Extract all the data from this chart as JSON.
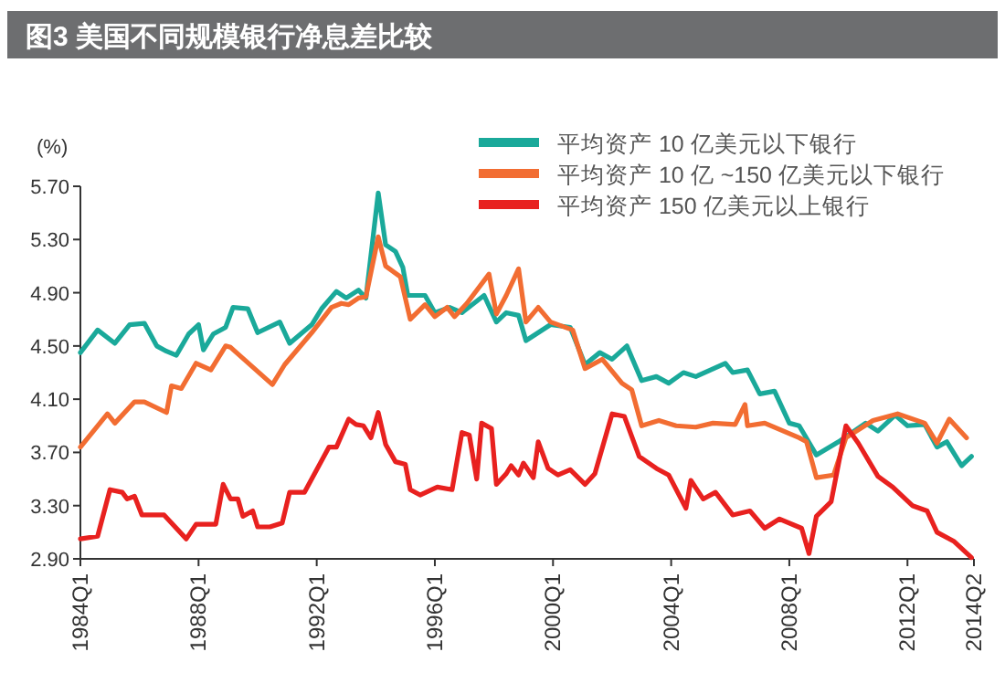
{
  "chart_data": {
    "type": "line",
    "title": "图3 美国不同规模银行净息差比较",
    "ylabel": "(%)",
    "xlim": [
      "1984-01",
      "2014-04"
    ],
    "xticks": [
      {
        "value": "1984-01",
        "label": "1984Q1"
      },
      {
        "value": "1988-01",
        "label": "1988Q1"
      },
      {
        "value": "1992-01",
        "label": "1992Q1"
      },
      {
        "value": "1996-01",
        "label": "1996Q1"
      },
      {
        "value": "2000-01",
        "label": "2000Q1"
      },
      {
        "value": "2004-01",
        "label": "2004Q1"
      },
      {
        "value": "2008-01",
        "label": "2008Q1"
      },
      {
        "value": "2012-01",
        "label": "2012Q1"
      },
      {
        "value": "2014-04",
        "label": "2014Q2"
      }
    ],
    "ylim": [
      2.9,
      5.7
    ],
    "yticks": [
      {
        "value": 2.9,
        "label": "2.90"
      },
      {
        "value": 3.3,
        "label": "3.30"
      },
      {
        "value": 3.7,
        "label": "3.70"
      },
      {
        "value": 4.1,
        "label": "4.10"
      },
      {
        "value": 4.5,
        "label": "4.50"
      },
      {
        "value": 4.9,
        "label": "4.90"
      },
      {
        "value": 5.3,
        "label": "5.30"
      },
      {
        "value": 5.7,
        "label": "5.70"
      }
    ],
    "grid": false,
    "legend": "top right",
    "marker": "none",
    "line_style": "solid",
    "series": [
      {
        "name": "平均资产 10 亿美元以下银行",
        "color": "#1aa99a",
        "x": [
          "1984-01",
          "1984-08",
          "1985-03",
          "1985-09",
          "1986-03",
          "1986-08",
          "1986-12",
          "1987-04",
          "1987-09",
          "1988-01",
          "1988-03",
          "1988-07",
          "1988-12",
          "1989-03",
          "1989-09",
          "1990-01",
          "1990-10",
          "1991-02",
          "1991-11",
          "1992-03",
          "1992-09",
          "1993-01",
          "1993-06",
          "1993-09",
          "1994-02",
          "1994-05",
          "1994-09",
          "1994-12",
          "1995-02",
          "1995-09",
          "1996-01",
          "1996-07",
          "1996-12",
          "1997-09",
          "1998-02",
          "1998-06",
          "1998-11",
          "1999-02",
          "1999-12",
          "2000-08",
          "2001-02",
          "2001-08",
          "2002-01",
          "2002-07",
          "2003-01",
          "2003-07",
          "2003-12",
          "2004-06",
          "2004-11",
          "2005-05",
          "2005-11",
          "2006-02",
          "2006-08",
          "2007-01",
          "2007-07",
          "2008-01",
          "2008-05",
          "2008-12",
          "2009-09",
          "2010-08",
          "2011-01",
          "2011-08",
          "2012-01",
          "2012-08",
          "2013-01",
          "2013-05",
          "2013-11",
          "2014-03"
        ],
        "values": [
          4.45,
          4.62,
          4.52,
          4.66,
          4.67,
          4.5,
          4.46,
          4.43,
          4.59,
          4.66,
          4.47,
          4.59,
          4.64,
          4.79,
          4.78,
          4.6,
          4.68,
          4.52,
          4.66,
          4.78,
          4.91,
          4.86,
          4.92,
          4.86,
          5.65,
          5.26,
          5.21,
          5.09,
          4.88,
          4.88,
          4.75,
          4.79,
          4.75,
          4.88,
          4.68,
          4.75,
          4.73,
          4.54,
          4.66,
          4.64,
          4.36,
          4.45,
          4.4,
          4.5,
          4.24,
          4.27,
          4.22,
          4.3,
          4.27,
          4.32,
          4.37,
          4.3,
          4.32,
          4.14,
          4.16,
          3.92,
          3.9,
          3.68,
          3.78,
          3.92,
          3.86,
          3.98,
          3.9,
          3.91,
          3.74,
          3.78,
          3.6,
          3.67
        ]
      },
      {
        "name": "平均资产 10 亿 ~150 亿美元以下银行",
        "color": "#f26d32",
        "x": [
          "1984-01",
          "1984-12",
          "1985-03",
          "1985-11",
          "1986-03",
          "1986-12",
          "1987-02",
          "1987-06",
          "1987-12",
          "1988-06",
          "1988-12",
          "1989-02",
          "1990-07",
          "1990-12",
          "1991-11",
          "1992-07",
          "1992-11",
          "1993-02",
          "1993-06",
          "1993-09",
          "1994-02",
          "1994-05",
          "1994-11",
          "1995-03",
          "1995-09",
          "1996-01",
          "1996-06",
          "1996-09",
          "1997-02",
          "1997-11",
          "1998-02",
          "1998-06",
          "1998-11",
          "1999-02",
          "1999-07",
          "1999-12",
          "2000-09",
          "2001-02",
          "2001-09",
          "2002-05",
          "2002-09",
          "2003-01",
          "2003-08",
          "2004-03",
          "2004-11",
          "2005-06",
          "2006-03",
          "2006-07",
          "2006-08",
          "2007-03",
          "2008-05",
          "2008-08",
          "2008-12",
          "2009-07",
          "2009-12",
          "2010-11",
          "2011-09",
          "2012-08",
          "2013-01",
          "2013-06",
          "2014-01"
        ],
        "values": [
          3.74,
          3.99,
          3.92,
          4.08,
          4.08,
          4.0,
          4.2,
          4.18,
          4.37,
          4.32,
          4.5,
          4.49,
          4.21,
          4.36,
          4.6,
          4.79,
          4.82,
          4.81,
          4.86,
          4.87,
          5.32,
          5.1,
          5.02,
          4.7,
          4.81,
          4.72,
          4.79,
          4.72,
          4.82,
          5.04,
          4.74,
          4.88,
          5.08,
          4.68,
          4.79,
          4.68,
          4.62,
          4.33,
          4.4,
          4.22,
          4.17,
          3.9,
          3.94,
          3.9,
          3.89,
          3.92,
          3.91,
          4.06,
          3.9,
          3.92,
          3.81,
          3.78,
          3.51,
          3.53,
          3.81,
          3.94,
          3.99,
          3.92,
          3.77,
          3.95,
          3.81
        ]
      },
      {
        "name": "平均资产 150 亿美元以上银行",
        "color": "#e8211f",
        "x": [
          "1984-01",
          "1984-08",
          "1985-01",
          "1985-06",
          "1985-08",
          "1985-11",
          "1986-02",
          "1986-11",
          "1987-08",
          "1987-12",
          "1988-08",
          "1988-11",
          "1989-02",
          "1989-05",
          "1989-07",
          "1989-11",
          "1990-01",
          "1990-06",
          "1990-11",
          "1991-02",
          "1991-08",
          "1992-06",
          "1992-09",
          "1993-02",
          "1993-05",
          "1993-08",
          "1993-11",
          "1994-02",
          "1994-05",
          "1994-09",
          "1995-01",
          "1995-03",
          "1995-07",
          "1996-02",
          "1996-08",
          "1996-12",
          "1997-03",
          "1997-06",
          "1997-08",
          "1997-12",
          "1998-02",
          "1998-06",
          "1998-08",
          "1998-11",
          "1999-01",
          "1999-05",
          "1999-07",
          "1999-11",
          "2000-03",
          "2000-08",
          "2001-02",
          "2001-06",
          "2002-01",
          "2002-06",
          "2002-12",
          "2003-07",
          "2003-12",
          "2004-07",
          "2004-09",
          "2005-02",
          "2005-07",
          "2006-02",
          "2006-09",
          "2007-03",
          "2007-09",
          "2008-06",
          "2008-09",
          "2008-12",
          "2009-06",
          "2009-12",
          "2010-05",
          "2011-01",
          "2011-07",
          "2012-03",
          "2012-09",
          "2013-01",
          "2013-08",
          "2014-03"
        ],
        "values": [
          3.05,
          3.07,
          3.42,
          3.4,
          3.35,
          3.37,
          3.23,
          3.23,
          3.05,
          3.16,
          3.16,
          3.46,
          3.35,
          3.35,
          3.22,
          3.26,
          3.14,
          3.14,
          3.17,
          3.4,
          3.4,
          3.74,
          3.74,
          3.95,
          3.91,
          3.9,
          3.81,
          4.0,
          3.76,
          3.63,
          3.61,
          3.42,
          3.38,
          3.44,
          3.42,
          3.85,
          3.83,
          3.5,
          3.92,
          3.88,
          3.46,
          3.54,
          3.6,
          3.53,
          3.62,
          3.51,
          3.78,
          3.58,
          3.53,
          3.57,
          3.46,
          3.54,
          3.99,
          3.97,
          3.67,
          3.58,
          3.53,
          3.28,
          3.49,
          3.35,
          3.4,
          3.23,
          3.26,
          3.13,
          3.2,
          3.13,
          2.94,
          3.22,
          3.33,
          3.9,
          3.77,
          3.52,
          3.44,
          3.3,
          3.26,
          3.1,
          3.03,
          2.91
        ]
      }
    ]
  }
}
